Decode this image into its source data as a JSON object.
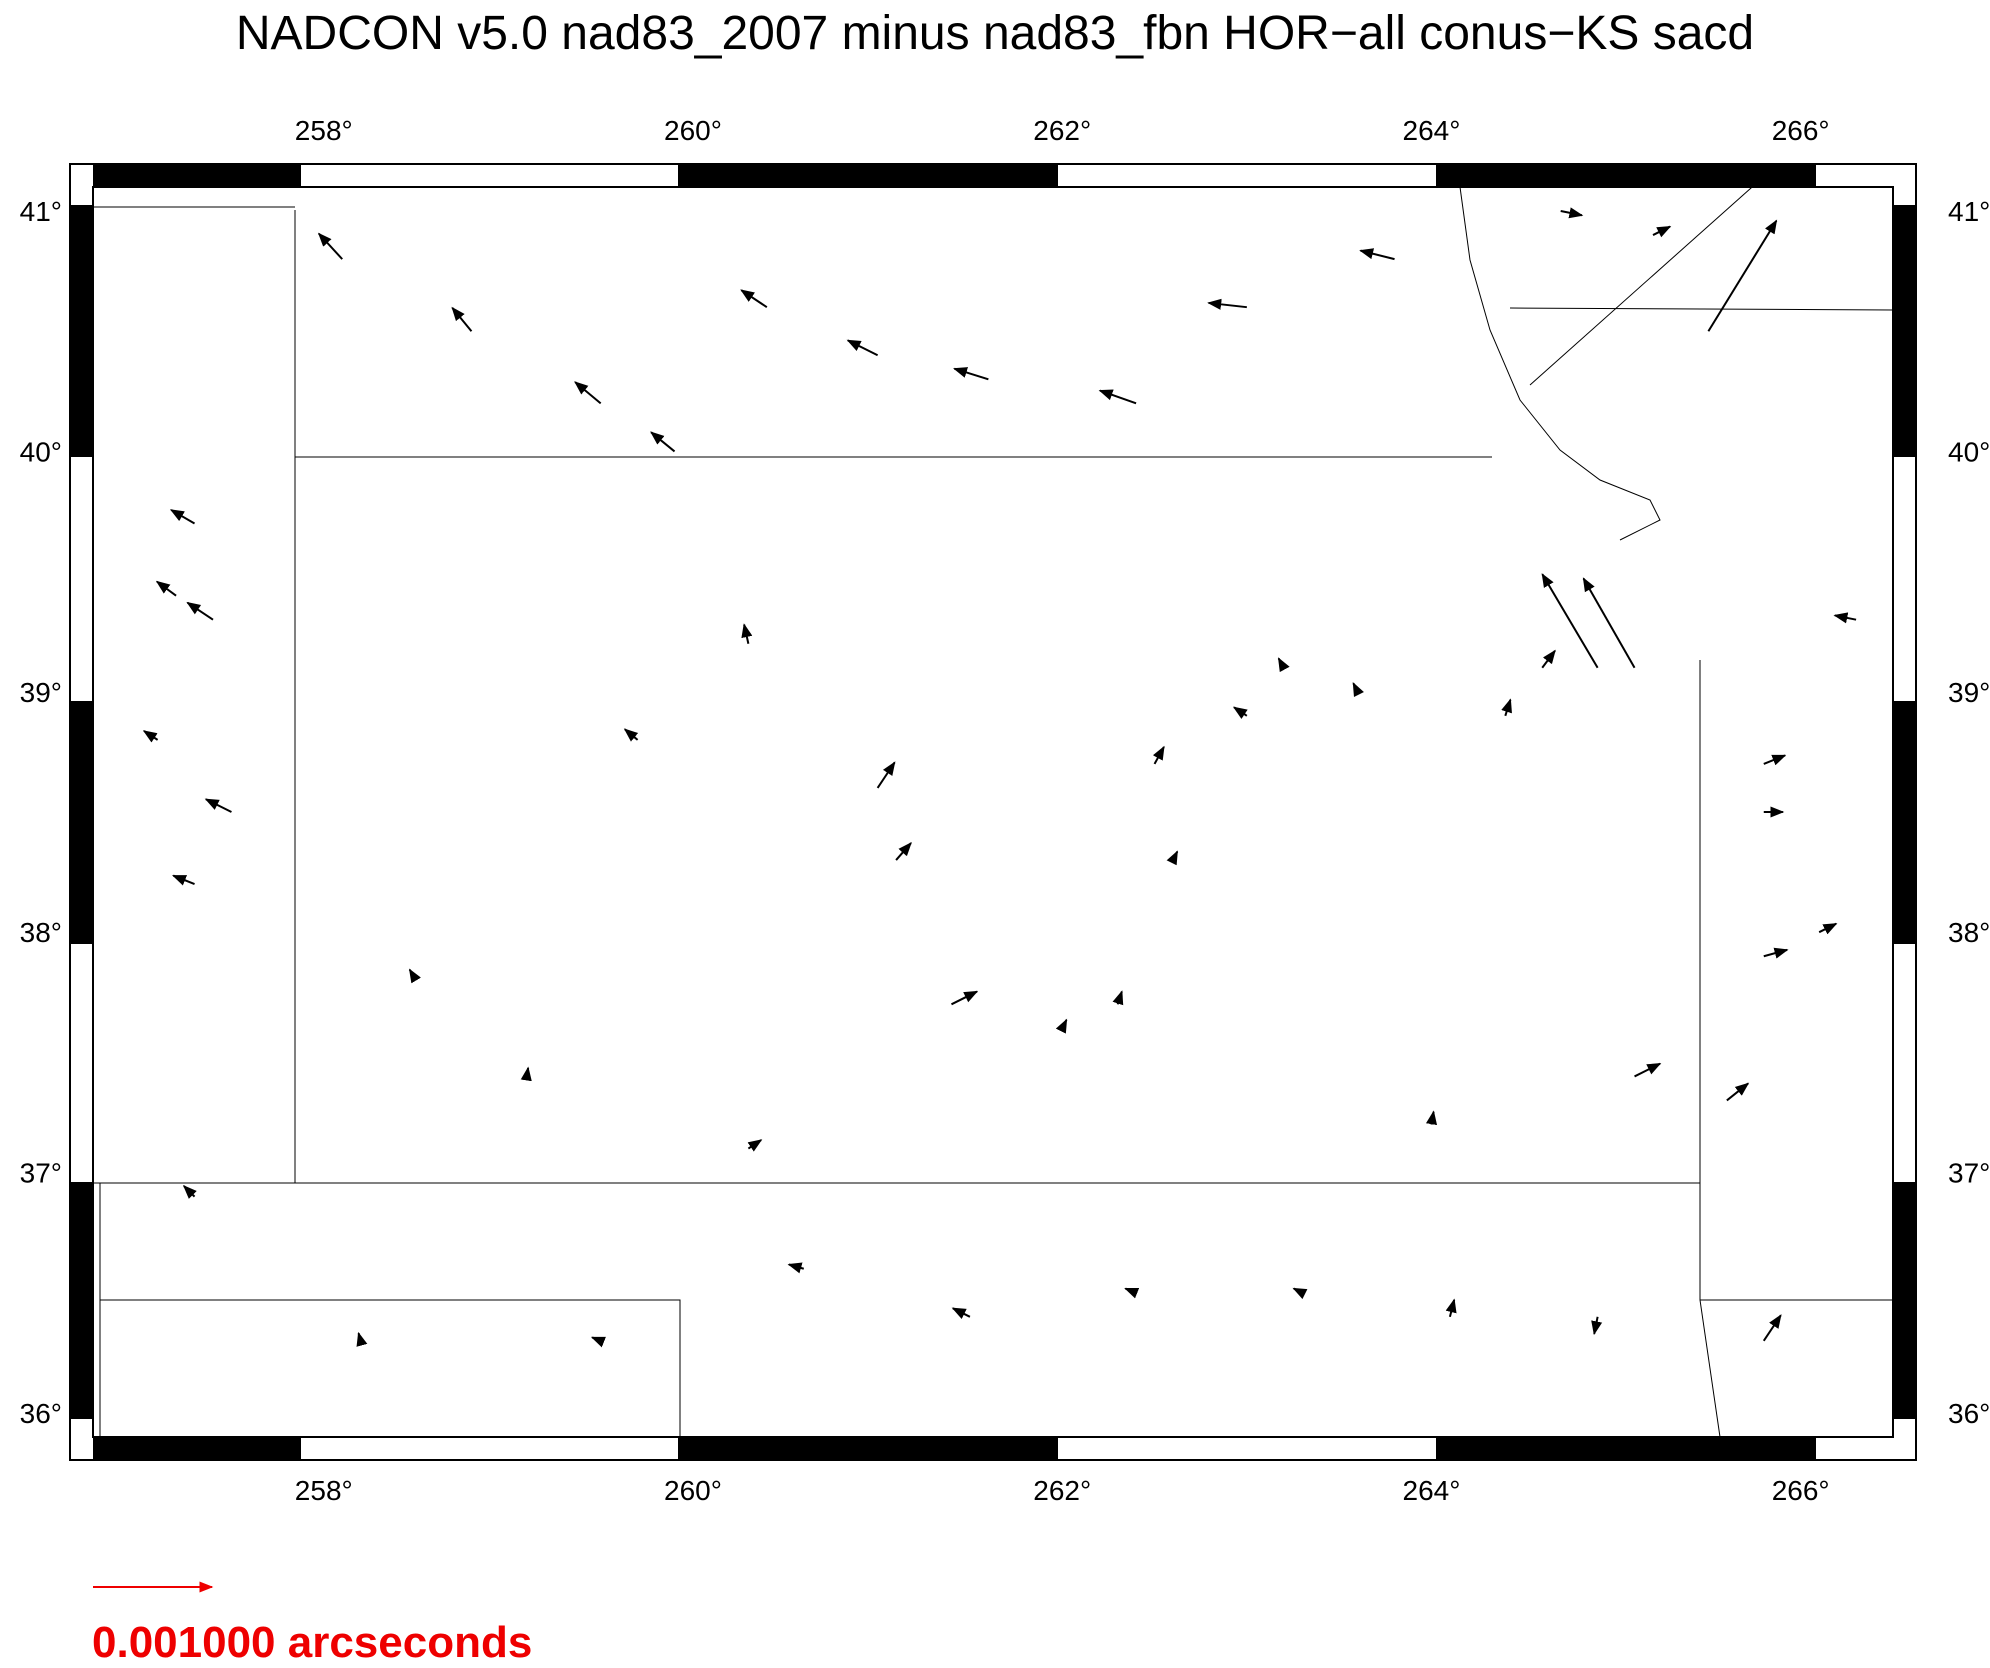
{
  "title": "NADCON v5.0 nad83_2007 minus nad83_fbn HOR−all  conus−KS sacd",
  "axes": {
    "x_ticks": [
      "258",
      "260",
      "262",
      "264",
      "266"
    ],
    "y_ticks": [
      "41",
      "40",
      "39",
      "38",
      "37",
      "36"
    ],
    "degree_symbol": "°"
  },
  "map_extent": {
    "lon_min": 256.75,
    "lon_max": 266.5,
    "lat_min": 35.9,
    "lat_max": 41.1
  },
  "scale": {
    "label": "0.001000 arcseconds",
    "color": "#ee0000"
  },
  "colors": {
    "vectors": "#000000",
    "borders": "#000000",
    "scale": "#ee0000"
  },
  "chart_data": {
    "type": "vector-field",
    "title": "NADCON v5.0 nad83_2007 minus nad83_fbn HOR−all  conus−KS sacd",
    "xlabel": "",
    "ylabel": "",
    "x_range": [
      256.75,
      266.5
    ],
    "y_range": [
      35.9,
      41.1
    ],
    "vectors": [
      [
        257.3,
        39.7,
        -5.5e-05,
        3.2e-05
      ],
      [
        257.2,
        39.4,
        -4.5e-05,
        3.3e-05
      ],
      [
        257.4,
        39.3,
        -6e-05,
        4e-05
      ],
      [
        257.1,
        38.8,
        -3.2e-05,
        2.1e-05
      ],
      [
        257.5,
        38.5,
        -6e-05,
        3e-05
      ],
      [
        257.3,
        38.2,
        -5e-05,
        2e-05
      ],
      [
        258.1,
        40.8,
        -5.5e-05,
        6e-05
      ],
      [
        258.8,
        40.5,
        -4.5e-05,
        5.5e-05
      ],
      [
        259.5,
        40.2,
        -6e-05,
        5e-05
      ],
      [
        259.9,
        40.0,
        -5.5e-05,
        4.5e-05
      ],
      [
        260.4,
        40.6,
        -6e-05,
        4e-05
      ],
      [
        261.0,
        40.4,
        -7e-05,
        3.5e-05
      ],
      [
        261.6,
        40.3,
        -8e-05,
        2.5e-05
      ],
      [
        262.4,
        40.2,
        -8.5e-05,
        3e-05
      ],
      [
        263.0,
        40.6,
        -9e-05,
        1e-05
      ],
      [
        263.8,
        40.8,
        -8e-05,
        2e-05
      ],
      [
        259.7,
        38.8,
        -3e-05,
        2.5e-05
      ],
      [
        260.3,
        39.2,
        -1e-05,
        4.5e-05
      ],
      [
        261.0,
        38.6,
        4e-05,
        6e-05
      ],
      [
        261.1,
        38.3,
        3.5e-05,
        4e-05
      ],
      [
        262.5,
        38.7,
        2.2e-05,
        4e-05
      ],
      [
        263.0,
        38.9,
        -3e-05,
        2e-05
      ],
      [
        261.4,
        37.7,
        6e-05,
        3e-05
      ],
      [
        262.0,
        37.6,
        1e-05,
        2e-05
      ],
      [
        260.3,
        37.1,
        3e-05,
        2e-05
      ],
      [
        259.1,
        37.4,
        3e-06,
        2e-05
      ],
      [
        258.5,
        37.8,
        -1.5e-05,
        2.5e-05
      ],
      [
        257.3,
        36.9,
        -2.5e-05,
        2.5e-05
      ],
      [
        258.2,
        36.3,
        -5e-06,
        1.8e-05
      ],
      [
        259.5,
        36.3,
        -2e-05,
        8e-06
      ],
      [
        260.6,
        36.6,
        -3.5e-05,
        1e-05
      ],
      [
        261.5,
        36.4,
        -4e-05,
        2e-05
      ],
      [
        262.4,
        36.5,
        -2.5e-05,
        1e-05
      ],
      [
        263.3,
        36.5,
        -2e-05,
        1e-05
      ],
      [
        264.1,
        36.4,
        1e-05,
        4e-05
      ],
      [
        264.9,
        36.4,
        -8e-06,
        -4e-05
      ],
      [
        265.8,
        36.3,
        4e-05,
        6e-05
      ],
      [
        265.1,
        37.4,
        6e-05,
        3e-05
      ],
      [
        265.6,
        37.3,
        5e-05,
        4e-05
      ],
      [
        265.8,
        37.9,
        5.5e-05,
        1.5e-05
      ],
      [
        265.8,
        38.7,
        5e-05,
        2e-05
      ],
      [
        265.8,
        38.5,
        4.5e-05,
        0.0
      ],
      [
        264.9,
        39.1,
        -0.00013,
        0.00022
      ],
      [
        265.1,
        39.1,
        -0.00012,
        0.00021
      ],
      [
        264.6,
        39.1,
        3e-05,
        4e-05
      ],
      [
        264.4,
        38.9,
        1.2e-05,
        3.8e-05
      ],
      [
        263.6,
        39.0,
        -1e-05,
        2e-05
      ],
      [
        263.2,
        39.1,
        -1.2e-05,
        2.2e-05
      ],
      [
        262.6,
        38.3,
        1e-05,
        2e-05
      ],
      [
        262.3,
        37.7,
        1e-05,
        3e-05
      ],
      [
        264.0,
        37.2,
        5e-06,
        3e-05
      ],
      [
        265.5,
        40.5,
        0.00016,
        0.00026
      ],
      [
        265.2,
        40.9,
        4e-05,
        2e-05
      ],
      [
        264.7,
        41.0,
        5e-05,
        -1e-05
      ],
      [
        266.3,
        39.3,
        -5e-05,
        1e-05
      ],
      [
        266.1,
        38.0,
        4e-05,
        2e-05
      ]
    ]
  }
}
